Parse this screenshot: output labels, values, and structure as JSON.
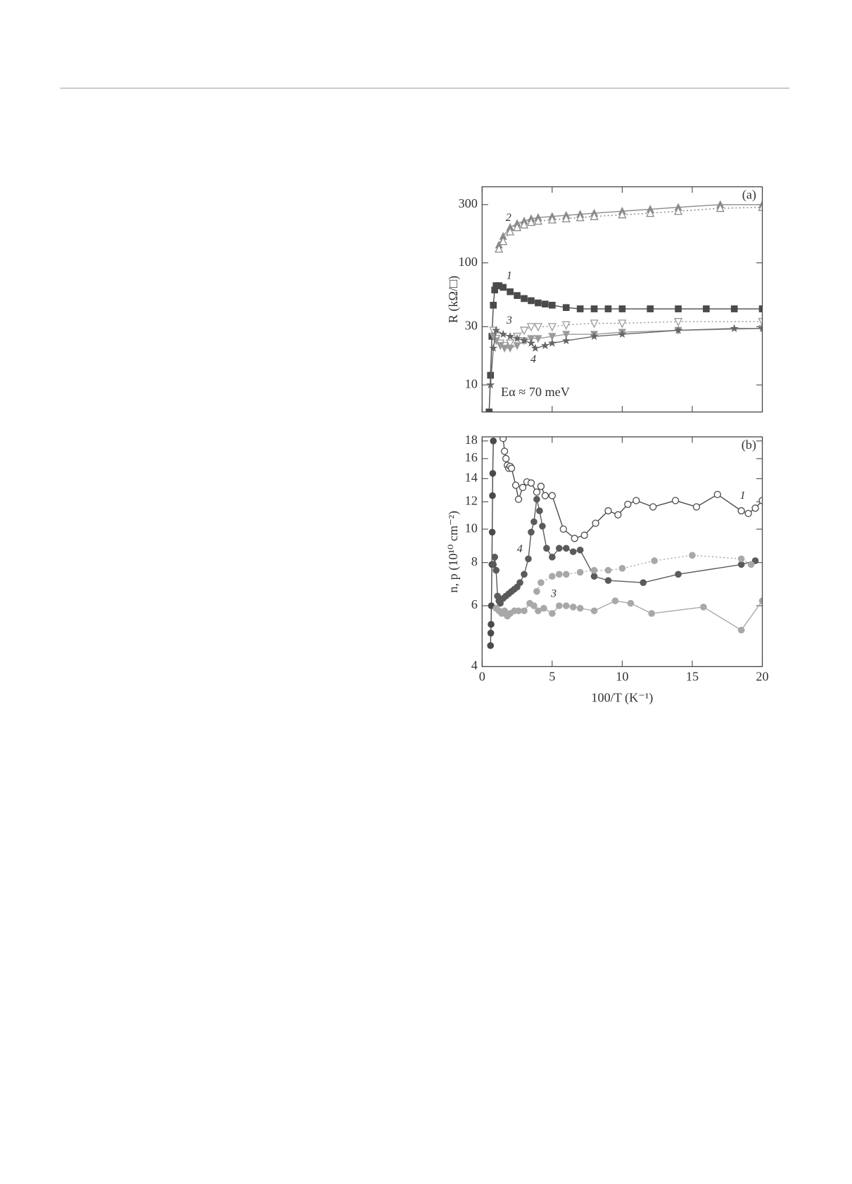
{
  "chart_data": [
    {
      "type": "line",
      "panel_label": "(a)",
      "ylabel": "R (kΩ/□)",
      "annotation": "Eα ≈ 70 meV",
      "xlim": [
        0,
        20
      ],
      "ylim": [
        6,
        420
      ],
      "yscale": "log",
      "yticks": [
        10,
        30,
        100,
        300
      ],
      "series": [
        {
          "name": "1",
          "color": "#4a4a4a",
          "marker": "square",
          "dash": "solid",
          "x": [
            0.5,
            0.6,
            0.7,
            0.8,
            0.9,
            1.0,
            1.2,
            1.5,
            2,
            2.5,
            3,
            3.5,
            4,
            4.5,
            5,
            6,
            7,
            8,
            9,
            10,
            12,
            14,
            16,
            18,
            20
          ],
          "values": [
            6,
            12,
            25,
            45,
            60,
            65,
            65,
            63,
            58,
            54,
            51,
            49,
            47,
            46,
            45,
            43,
            42,
            42,
            42,
            42,
            42,
            42,
            42,
            42,
            42
          ]
        },
        {
          "name": "2",
          "color": "#8a8a8a",
          "marker": "triangle",
          "dash": "solid",
          "x": [
            1.2,
            1.5,
            2,
            2.5,
            3,
            3.5,
            4,
            5,
            6,
            7,
            8,
            10,
            12,
            14,
            17,
            20
          ],
          "values": [
            140,
            165,
            195,
            210,
            220,
            230,
            235,
            240,
            245,
            250,
            255,
            265,
            275,
            285,
            300,
            300
          ]
        },
        {
          "color": "#8a8a8a",
          "marker": "triangle-open",
          "dash": "dotted",
          "x": [
            1.2,
            1.5,
            2,
            2.5,
            3,
            3.5,
            4,
            5,
            6,
            7,
            8,
            10,
            12,
            14,
            17,
            20
          ],
          "values": [
            130,
            150,
            180,
            195,
            205,
            215,
            220,
            225,
            230,
            235,
            240,
            248,
            255,
            265,
            280,
            285
          ]
        },
        {
          "name": "3",
          "color": "#9a9a9a",
          "marker": "tri-down-open",
          "dash": "dotted",
          "x": [
            0.8,
            1,
            1.3,
            1.6,
            2,
            2.5,
            3,
            3.5,
            4,
            5,
            6,
            8,
            10,
            14,
            20
          ],
          "values": [
            28,
            24,
            22,
            21,
            22,
            25,
            28,
            30,
            30,
            30,
            31,
            32,
            32,
            33,
            33
          ]
        },
        {
          "color": "#9a9a9a",
          "marker": "tri-down",
          "dash": "solid",
          "x": [
            0.8,
            1,
            1.3,
            1.6,
            2,
            2.5,
            3,
            3.5,
            4,
            5,
            6,
            8,
            10,
            14,
            20
          ],
          "values": [
            25,
            23,
            21,
            20,
            20,
            21,
            23,
            24,
            24,
            25,
            26,
            26,
            27,
            28,
            29
          ]
        },
        {
          "name": "4",
          "color": "#666666",
          "marker": "star",
          "dash": "solid",
          "x": [
            0.6,
            0.8,
            1,
            1.5,
            2,
            2.5,
            3,
            3.5,
            3.8,
            4.5,
            5,
            6,
            8,
            10,
            14,
            18,
            20
          ],
          "values": [
            10,
            20,
            28,
            26,
            25,
            24,
            23,
            22,
            20,
            21,
            22,
            23,
            25,
            26,
            28,
            29,
            29
          ]
        }
      ]
    },
    {
      "type": "line",
      "panel_label": "(b)",
      "ylabel": "n, p (10¹⁰ cm⁻²)",
      "xlabel": "100/T (K⁻¹)",
      "xlim": [
        0,
        20
      ],
      "xticks": [
        0,
        5,
        10,
        15,
        20
      ],
      "ylim": [
        4,
        18.5
      ],
      "yscale": "log",
      "yticks": [
        4,
        6,
        8,
        10,
        12,
        14,
        16,
        18
      ],
      "series": [
        {
          "name": "1",
          "color": "#4a4a4a",
          "marker": "circle-open",
          "dash": "solid",
          "x": [
            1.5,
            1.6,
            1.7,
            1.8,
            1.9,
            2.0,
            2.1,
            2.4,
            2.6,
            2.9,
            3.2,
            3.5,
            3.9,
            4.2,
            4.5,
            5,
            5.8,
            6.6,
            7.3,
            8.1,
            9,
            9.7,
            10.4,
            11,
            12.2,
            13.8,
            15.3,
            16.8,
            18.5,
            19,
            19.5,
            20
          ],
          "values": [
            18.3,
            16.8,
            16,
            15.3,
            15,
            15.2,
            15,
            13.4,
            12.2,
            13.2,
            13.7,
            13.6,
            12.8,
            13.3,
            12.5,
            12.5,
            10,
            9.4,
            9.6,
            10.4,
            11.3,
            11,
            11.8,
            12.1,
            11.6,
            12.1,
            11.6,
            12.6,
            11.3,
            11.1,
            11.5,
            12.1
          ]
        },
        {
          "color": "#4a4a4a",
          "marker": "circle",
          "dash": "solid",
          "x": [
            0.6,
            0.62,
            0.64,
            0.66,
            0.7,
            0.72,
            0.74,
            0.76,
            0.8
          ],
          "values": [
            4.6,
            5.0,
            5.3,
            6,
            7.9,
            9.8,
            12.5,
            14.5,
            18
          ]
        },
        {
          "name": "4",
          "color": "#5a5a5a",
          "marker": "circle",
          "dash": "solid",
          "x": [
            0.8,
            0.9,
            1,
            1.1,
            1.2,
            1.3,
            1.5,
            1.7,
            1.9,
            2.1,
            2.3,
            2.5,
            2.7,
            3,
            3.3,
            3.5,
            3.7,
            3.9,
            4.1,
            4.3,
            4.6,
            5,
            5.5,
            6,
            6.5,
            7,
            8,
            9,
            11.5,
            14,
            18.5,
            19.5
          ],
          "values": [
            7.9,
            8.3,
            7.6,
            6.4,
            6.2,
            6.1,
            6.3,
            6.4,
            6.5,
            6.6,
            6.7,
            6.8,
            7,
            7.4,
            8.2,
            9.8,
            10.5,
            12.2,
            11.3,
            10.2,
            8.8,
            8.3,
            8.8,
            8.8,
            8.6,
            8.7,
            7.3,
            7.1,
            7.0,
            7.4,
            7.9,
            8.1
          ]
        },
        {
          "name": "3",
          "color": "#a8a8a8",
          "marker": "circle",
          "dash": "solid",
          "x": [
            1,
            1.2,
            1.4,
            1.6,
            1.8,
            2,
            2.3,
            2.6,
            3,
            3.4,
            3.7,
            4,
            4.4,
            5,
            5.5,
            6,
            6.5,
            7,
            8,
            9.5,
            10.6,
            12.1,
            15.8,
            18.5,
            20
          ],
          "values": [
            5.9,
            5.8,
            5.7,
            5.8,
            5.6,
            5.7,
            5.8,
            5.8,
            5.8,
            6.1,
            6,
            5.8,
            5.9,
            5.7,
            6,
            6,
            5.95,
            5.9,
            5.8,
            6.2,
            6.1,
            5.7,
            5.95,
            5.1,
            6.2
          ]
        },
        {
          "color": "#a8a8a8",
          "marker": "circle",
          "dash": "dotted",
          "x": [
            3.9,
            4.2,
            5,
            5.5,
            6,
            7,
            8,
            9,
            10,
            12.3,
            15,
            18.5,
            19.2
          ],
          "values": [
            6.6,
            7,
            7.3,
            7.4,
            7.4,
            7.5,
            7.6,
            7.6,
            7.7,
            8.1,
            8.4,
            8.2,
            7.9
          ]
        }
      ]
    }
  ]
}
